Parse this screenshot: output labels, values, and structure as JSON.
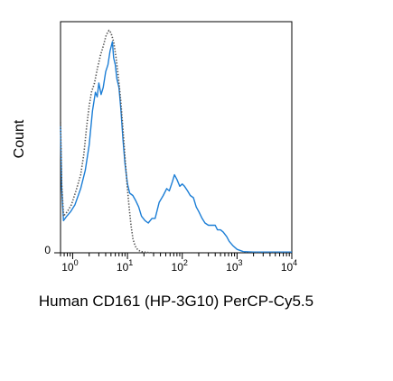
{
  "chart_data": {
    "type": "line",
    "title": "",
    "xlabel": "Human CD161 (HP-3G10) PerCP-Cy5.5",
    "ylabel": "Count",
    "x_scale": "log",
    "xlim": [
      0.6,
      10000
    ],
    "ylim": [
      0,
      100
    ],
    "grid": false,
    "legend": "none",
    "y_tick_labels": [
      {
        "value": 0,
        "label": "0"
      }
    ],
    "x_tick_labels": [
      {
        "value": 1,
        "base": "10",
        "exp": "0"
      },
      {
        "value": 10,
        "base": "10",
        "exp": "1"
      },
      {
        "value": 100,
        "base": "10",
        "exp": "2"
      },
      {
        "value": 1000,
        "base": "10",
        "exp": "3"
      },
      {
        "value": 10000,
        "base": "10",
        "exp": "4"
      }
    ],
    "series": [
      {
        "color": "#1c7ed6",
        "style": "solid",
        "points": [
          [
            0.6,
            55
          ],
          [
            0.63,
            28
          ],
          [
            0.68,
            14
          ],
          [
            0.78,
            16
          ],
          [
            0.92,
            18
          ],
          [
            1.1,
            21
          ],
          [
            1.4,
            28
          ],
          [
            1.7,
            36
          ],
          [
            2.0,
            47
          ],
          [
            2.3,
            62
          ],
          [
            2.6,
            70
          ],
          [
            2.8,
            68
          ],
          [
            3.0,
            74
          ],
          [
            3.3,
            69
          ],
          [
            3.6,
            72
          ],
          [
            4.0,
            79
          ],
          [
            4.4,
            82
          ],
          [
            4.8,
            88
          ],
          [
            5.3,
            92
          ],
          [
            5.6,
            85
          ],
          [
            6.0,
            82
          ],
          [
            6.4,
            76
          ],
          [
            7.0,
            72
          ],
          [
            7.6,
            62
          ],
          [
            8.3,
            49
          ],
          [
            9.0,
            39
          ],
          [
            10,
            30
          ],
          [
            11,
            26
          ],
          [
            12.5,
            25
          ],
          [
            14,
            23
          ],
          [
            16,
            20
          ],
          [
            18,
            16
          ],
          [
            21,
            14
          ],
          [
            24,
            13
          ],
          [
            28,
            15
          ],
          [
            32,
            15
          ],
          [
            38,
            22
          ],
          [
            45,
            25
          ],
          [
            52,
            28
          ],
          [
            58,
            27
          ],
          [
            66,
            31
          ],
          [
            72,
            34
          ],
          [
            80,
            32
          ],
          [
            90,
            29
          ],
          [
            100,
            30
          ],
          [
            110,
            29
          ],
          [
            125,
            27
          ],
          [
            140,
            25
          ],
          [
            160,
            24
          ],
          [
            180,
            20
          ],
          [
            200,
            18
          ],
          [
            230,
            15
          ],
          [
            260,
            13
          ],
          [
            300,
            12
          ],
          [
            350,
            12
          ],
          [
            400,
            12
          ],
          [
            440,
            10
          ],
          [
            500,
            10
          ],
          [
            560,
            9
          ],
          [
            650,
            7
          ],
          [
            720,
            5
          ],
          [
            850,
            3
          ],
          [
            1000,
            1.5
          ],
          [
            1300,
            0.5
          ],
          [
            2000,
            0.3
          ],
          [
            10000,
            0.3
          ]
        ]
      },
      {
        "color": "#555555",
        "style": "dotted",
        "points": [
          [
            0.6,
            57
          ],
          [
            0.63,
            30
          ],
          [
            0.68,
            16
          ],
          [
            0.8,
            18
          ],
          [
            0.95,
            21
          ],
          [
            1.15,
            27
          ],
          [
            1.4,
            34
          ],
          [
            1.6,
            43
          ],
          [
            1.8,
            55
          ],
          [
            2.0,
            64
          ],
          [
            2.2,
            70
          ],
          [
            2.5,
            74
          ],
          [
            2.8,
            80
          ],
          [
            3.2,
            86
          ],
          [
            3.6,
            90
          ],
          [
            4.1,
            95
          ],
          [
            4.6,
            97
          ],
          [
            5.0,
            96
          ],
          [
            5.6,
            92
          ],
          [
            6.2,
            85
          ],
          [
            6.8,
            77
          ],
          [
            7.5,
            67
          ],
          [
            8.2,
            55
          ],
          [
            9.0,
            42
          ],
          [
            9.8,
            30
          ],
          [
            10.7,
            20
          ],
          [
            11.6,
            12
          ],
          [
            12.6,
            6
          ],
          [
            13.8,
            3
          ],
          [
            15.5,
            1.2
          ],
          [
            18,
            0.5
          ],
          [
            22,
            0.2
          ],
          [
            30,
            0
          ],
          [
            10000,
            0
          ]
        ]
      }
    ]
  }
}
